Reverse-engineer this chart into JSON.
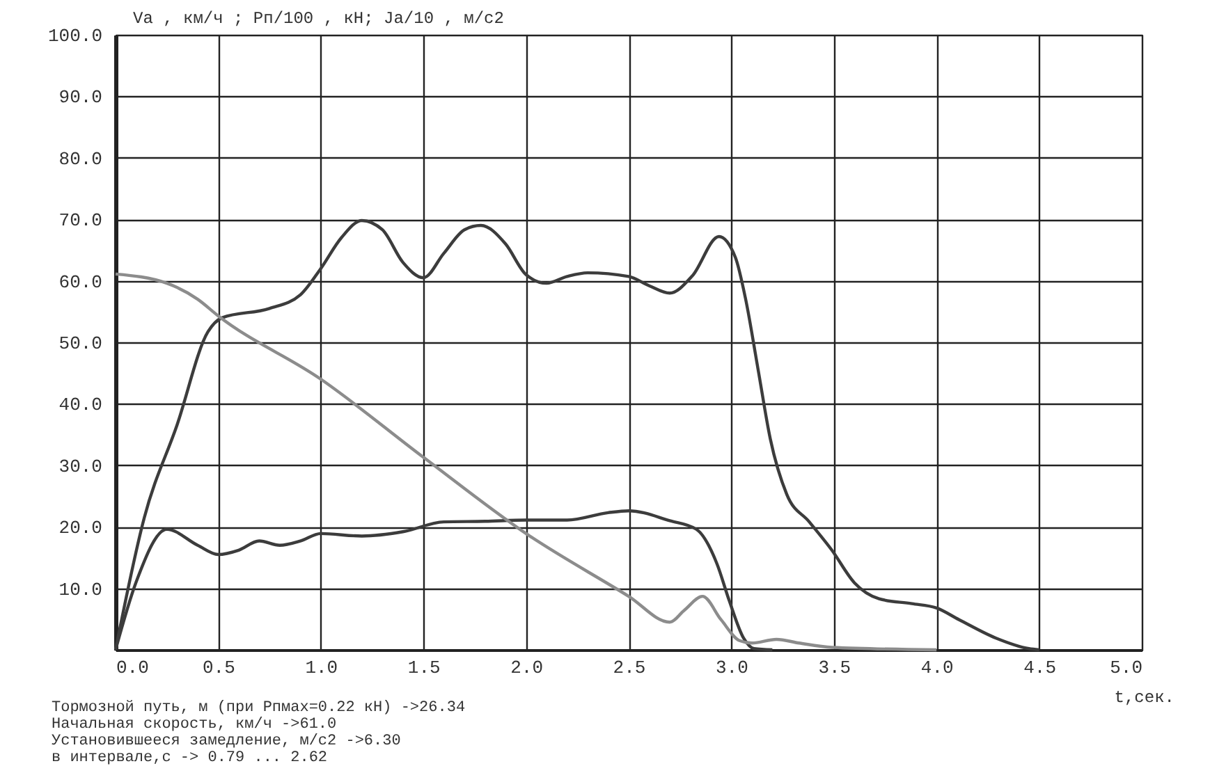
{
  "chart_data": {
    "type": "line",
    "ylabel": "Va , км/ч ; Рп/100 , кН;  Ja/10 , м/с2",
    "xlabel": "t,сек.",
    "annotations": [
      "Тормозной путь, м (при Рпмах=0.22  кН) ->26.34",
      "Начальная скорость, км/ч                ->61.0",
      "Установившееся замедление, м/с2          ->6.30",
      "    в интервале,с -> 0.79 ... 2.62"
    ],
    "xlim": [
      0,
      5
    ],
    "ylim": [
      0,
      100
    ],
    "xticks": [
      {
        "value": 0,
        "label": "0.0"
      },
      {
        "value": 0.5,
        "label": "0.5"
      },
      {
        "value": 1,
        "label": "1.0"
      },
      {
        "value": 1.5,
        "label": "1.5"
      },
      {
        "value": 2,
        "label": "2.0"
      },
      {
        "value": 2.5,
        "label": "2.5"
      },
      {
        "value": 3,
        "label": "3.0"
      },
      {
        "value": 3.5,
        "label": "3.5"
      },
      {
        "value": 4,
        "label": "4.0"
      },
      {
        "value": 4.5,
        "label": "4.5"
      },
      {
        "value": 5,
        "label": "5.0"
      }
    ],
    "yticks": [
      {
        "value": 0,
        "label": null
      },
      {
        "value": 10,
        "label": "10.0"
      },
      {
        "value": 20,
        "label": "20.0"
      },
      {
        "value": 30,
        "label": "30.0"
      },
      {
        "value": 40,
        "label": "40.0"
      },
      {
        "value": 50,
        "label": "50.0"
      },
      {
        "value": 60,
        "label": "60.0"
      },
      {
        "value": 70,
        "label": "70.0"
      },
      {
        "value": 80,
        "label": "80.0"
      },
      {
        "value": 90,
        "label": "90.0"
      },
      {
        "value": 100,
        "label": "100.0"
      }
    ],
    "grid": true,
    "legend": false,
    "marker": "none",
    "line_style": "solid",
    "series": [
      {
        "color": "#3c3c3c",
        "x": [
          0,
          0.14,
          0.3,
          0.45,
          0.52,
          0.75,
          0.9,
          1.0,
          1.1,
          1.2,
          1.3,
          1.4,
          1.5,
          1.6,
          1.7,
          1.78,
          1.9,
          2.0,
          2.1,
          2.2,
          2.3,
          2.5,
          2.6,
          2.7,
          2.81,
          2.94,
          3.02,
          3.07,
          3.13,
          3.19,
          3.27,
          3.38,
          3.49,
          3.6,
          3.72,
          3.88,
          4.0,
          4.11,
          4.29,
          4.45,
          4.5
        ],
        "values": [
          0,
          21.5,
          36.6,
          51.7,
          54,
          55.5,
          57.7,
          62,
          67,
          69.8,
          68.3,
          63,
          60.5,
          64.5,
          68.3,
          69,
          66,
          61,
          59.6,
          60.7,
          61.3,
          60.7,
          59.2,
          58,
          60.8,
          67.2,
          63.8,
          57,
          45.7,
          34.3,
          25.3,
          20.8,
          16.2,
          10.9,
          8.3,
          7.5,
          6.8,
          4.9,
          1.9,
          0.2,
          0
        ]
      },
      {
        "color": "#3c3c3c",
        "x": [
          0,
          0.1,
          0.25,
          0.4,
          0.5,
          0.6,
          0.7,
          0.8,
          0.9,
          1.0,
          1.2,
          1.4,
          1.6,
          1.8,
          2.0,
          2.2,
          2.4,
          2.5,
          2.7,
          2.83,
          2.93,
          2.99,
          3.06,
          3.11,
          3.2
        ],
        "values": [
          0,
          11,
          19.6,
          17,
          15.5,
          16.2,
          17.7,
          17,
          17.7,
          18.9,
          18.5,
          19.2,
          20.8,
          20.9,
          21.1,
          21.1,
          22.3,
          22.6,
          21,
          19.6,
          14,
          8,
          1.9,
          0.2,
          0
        ]
      },
      {
        "color": "#8c8c8c",
        "x": [
          0,
          0.25,
          0.4,
          0.5,
          1.0,
          1.5,
          2.0,
          2.5,
          2.7,
          2.77,
          2.86,
          2.95,
          3.04,
          3.1,
          3.22,
          3.33,
          3.49,
          4.0
        ],
        "values": [
          61.1,
          59.6,
          57,
          54.3,
          44,
          31.3,
          18.9,
          8.7,
          4.5,
          6.4,
          8.7,
          4.9,
          1.5,
          1.1,
          1.7,
          1.1,
          0.4,
          0
        ]
      }
    ]
  }
}
